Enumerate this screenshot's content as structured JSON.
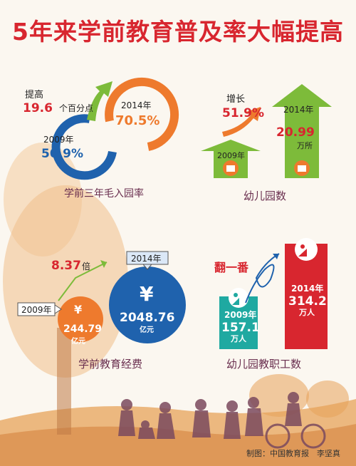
{
  "title": "5年来学前教育普及率大幅提高",
  "credit": "制图：中国教育报　李坚真",
  "colors": {
    "title": "#d8262f",
    "red": "#d8262f",
    "orange": "#ee7a2d",
    "blue": "#1f62ad",
    "green": "#7dbb3a",
    "teal": "#1fa9a1",
    "purple": "#5a3350"
  },
  "chart_data": [
    {
      "type": "ring",
      "label": "学前三年毛入园率",
      "series": [
        {
          "year_label": "2009年",
          "value_label": "50.9%",
          "value": 50.9
        },
        {
          "year_label": "2014年",
          "value_label": "70.5%",
          "value": 70.5
        }
      ],
      "increase": {
        "prefix": "提高",
        "value": "19.6",
        "unit": "个百分点"
      }
    },
    {
      "type": "bar",
      "label": "幼儿园数",
      "series": [
        {
          "year_label": "2009年",
          "value_label": ""
        },
        {
          "year_label": "2014年",
          "value_label": "20.99",
          "unit": "万所",
          "value": 20.99
        }
      ],
      "increase": {
        "prefix": "增长",
        "value": "51.9%"
      }
    },
    {
      "type": "bubble",
      "label": "学前教育经费",
      "series": [
        {
          "year_label": "2009年",
          "value_label": "244.79",
          "unit": "亿元",
          "value": 244.79
        },
        {
          "year_label": "2014年",
          "value_label": "2048.76",
          "unit": "亿元",
          "value": 2048.76
        }
      ],
      "increase": {
        "value": "8.37",
        "unit": "倍"
      },
      "currency_symbol": "¥"
    },
    {
      "type": "bar",
      "label": "幼儿园教职工数",
      "series": [
        {
          "year_label": "2009年",
          "value_label": "157.1",
          "unit": "万人",
          "value": 157.1
        },
        {
          "year_label": "2014年",
          "value_label": "314.2",
          "unit": "万人",
          "value": 314.2
        }
      ],
      "increase": {
        "value": "翻一番"
      }
    }
  ]
}
